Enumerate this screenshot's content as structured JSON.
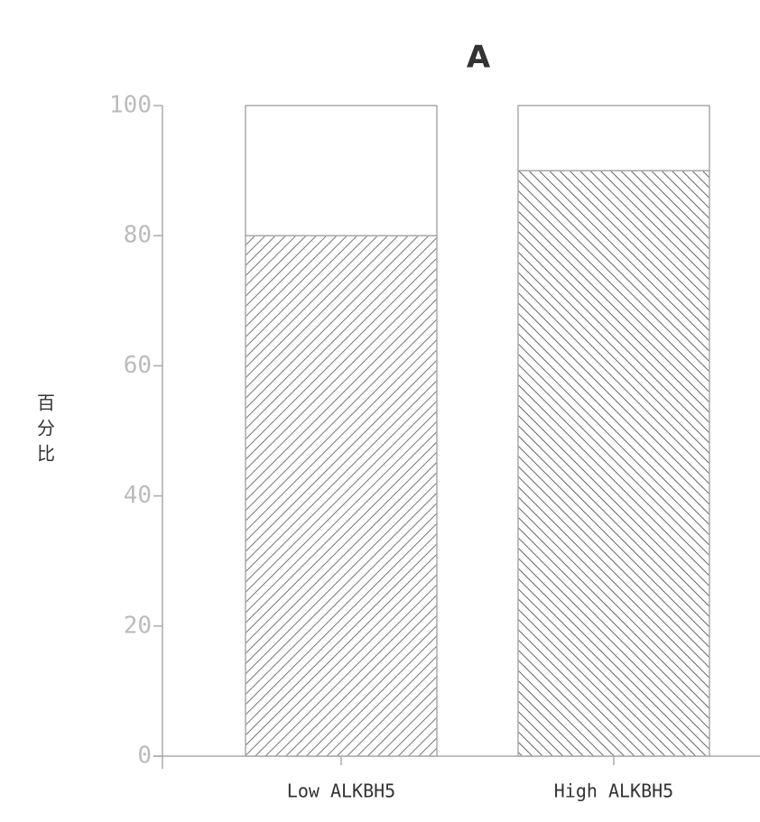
{
  "chart_data": {
    "type": "stacked_bar",
    "title": "A",
    "ylabel": "百分比",
    "categories": [
      "Low ALKBH5",
      "High ALKBH5"
    ],
    "series": [
      {
        "color": "#888888",
        "hatch": "forward",
        "values": [
          80,
          90
        ]
      },
      {
        "color": "#ffffff",
        "hatch": "none",
        "values": [
          20,
          10
        ]
      }
    ],
    "ylim": [
      0,
      100
    ],
    "yticks": [
      0,
      20,
      40,
      60,
      80,
      100
    ],
    "grid": false
  }
}
